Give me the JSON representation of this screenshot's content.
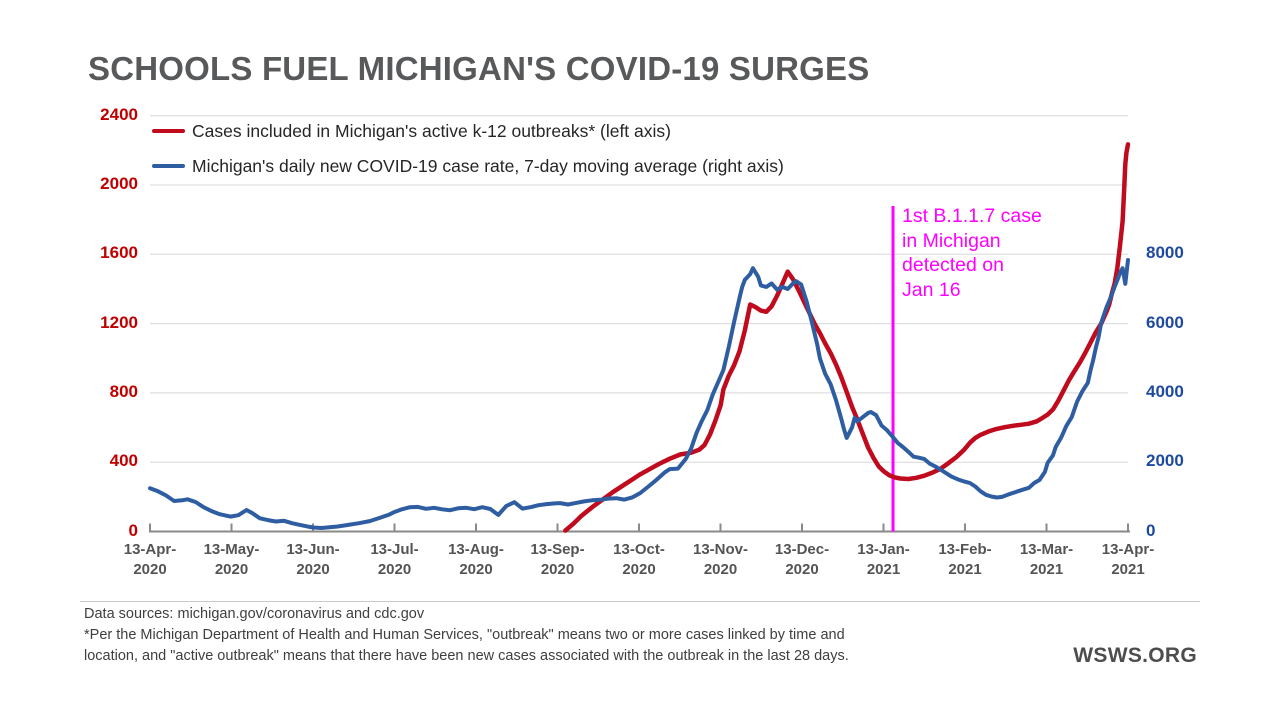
{
  "footer": {
    "lines": [
      "Data sources: michigan.gov/coronavirus and cdc.gov",
      "*Per the Michigan Department of Health and Human Services, \"outbreak\" means two or more cases linked by time and",
      "location, and \"active outbreak\" means that there have been new cases associated with the outbreak in the last 28 days."
    ]
  },
  "branding": {
    "text": "WSWS.ORG"
  },
  "chart_data": {
    "type": "line",
    "title": "SCHOOLS FUEL MICHIGAN'S COVID-19 SURGES",
    "x_unit": "days since 13-Apr-2020",
    "x_tick_labels": [
      [
        "13-Apr-",
        "2020"
      ],
      [
        "13-May-",
        "2020"
      ],
      [
        "13-Jun-",
        "2020"
      ],
      [
        "13-Jul-",
        "2020"
      ],
      [
        "13-Aug-",
        "2020"
      ],
      [
        "13-Sep-",
        "2020"
      ],
      [
        "13-Oct-",
        "2020"
      ],
      [
        "13-Nov-",
        "2020"
      ],
      [
        "13-Dec-",
        "2020"
      ],
      [
        "13-Jan-",
        "2021"
      ],
      [
        "13-Feb-",
        "2021"
      ],
      [
        "13-Mar-",
        "2021"
      ],
      [
        "13-Apr-",
        "2021"
      ]
    ],
    "grid": true,
    "gridline_color": "#d8d8d8",
    "axis_line_color": "#8a8a8a",
    "left_axis": {
      "side": "left",
      "color": "#c00000",
      "ticks": [
        0,
        400,
        800,
        1200,
        1600,
        2000,
        2400
      ],
      "range": [
        0,
        2400
      ]
    },
    "right_axis": {
      "side": "right",
      "color": "#1e4a9e",
      "ticks": [
        0,
        2000,
        4000,
        6000,
        8000
      ],
      "range": [
        0,
        12000
      ]
    },
    "event_line": {
      "day": 277.3,
      "color": "#ff00ff",
      "label_lines": [
        "1st B.1.1.7 case",
        "in Michigan",
        "detected on",
        "Jan 16"
      ]
    },
    "series": [
      {
        "name": "Cases included in Michigan's active k-12 outbreaks* (left axis)",
        "axis": "left",
        "color": "#c00b1e",
        "points": [
          [
            155,
            5
          ],
          [
            158,
            45
          ],
          [
            161,
            90
          ],
          [
            165,
            140
          ],
          [
            169,
            185
          ],
          [
            173,
            230
          ],
          [
            177,
            270
          ],
          [
            180,
            300
          ],
          [
            183,
            330
          ],
          [
            187,
            365
          ],
          [
            190,
            390
          ],
          [
            194,
            420
          ],
          [
            198,
            445
          ],
          [
            202,
            455
          ],
          [
            205,
            472
          ],
          [
            207,
            500
          ],
          [
            209,
            560
          ],
          [
            211,
            640
          ],
          [
            213,
            730
          ],
          [
            214,
            820
          ],
          [
            216,
            900
          ],
          [
            218,
            960
          ],
          [
            220,
            1040
          ],
          [
            222,
            1160
          ],
          [
            224,
            1310
          ],
          [
            226,
            1295
          ],
          [
            228,
            1275
          ],
          [
            230,
            1268
          ],
          [
            232,
            1300
          ],
          [
            234,
            1360
          ],
          [
            236,
            1430
          ],
          [
            238,
            1500
          ],
          [
            240,
            1455
          ],
          [
            242,
            1395
          ],
          [
            244,
            1330
          ],
          [
            246,
            1265
          ],
          [
            248,
            1200
          ],
          [
            250,
            1145
          ],
          [
            252,
            1085
          ],
          [
            254,
            1030
          ],
          [
            256,
            965
          ],
          [
            258,
            890
          ],
          [
            260,
            805
          ],
          [
            262,
            720
          ],
          [
            264,
            645
          ],
          [
            266,
            565
          ],
          [
            268,
            485
          ],
          [
            270,
            425
          ],
          [
            272,
            375
          ],
          [
            274,
            345
          ],
          [
            276,
            324
          ],
          [
            278,
            312
          ],
          [
            280,
            306
          ],
          [
            283,
            303
          ],
          [
            286,
            310
          ],
          [
            289,
            322
          ],
          [
            292,
            340
          ],
          [
            295,
            362
          ],
          [
            298,
            395
          ],
          [
            301,
            430
          ],
          [
            304,
            475
          ],
          [
            306,
            512
          ],
          [
            308,
            540
          ],
          [
            310,
            558
          ],
          [
            313,
            578
          ],
          [
            316,
            592
          ],
          [
            319,
            602
          ],
          [
            322,
            610
          ],
          [
            325,
            616
          ],
          [
            328,
            622
          ],
          [
            331,
            636
          ],
          [
            333,
            655
          ],
          [
            335,
            675
          ],
          [
            337,
            705
          ],
          [
            339,
            755
          ],
          [
            341,
            815
          ],
          [
            343,
            875
          ],
          [
            345,
            925
          ],
          [
            347,
            975
          ],
          [
            349,
            1030
          ],
          [
            351,
            1090
          ],
          [
            353,
            1150
          ],
          [
            355,
            1200
          ],
          [
            357,
            1270
          ],
          [
            358,
            1310
          ],
          [
            359,
            1375
          ],
          [
            360,
            1430
          ],
          [
            361,
            1520
          ],
          [
            362,
            1650
          ],
          [
            363,
            1790
          ],
          [
            363.6,
            1980
          ],
          [
            364,
            2120
          ],
          [
            364.4,
            2185
          ],
          [
            365,
            2235
          ]
        ]
      },
      {
        "name": "Michigan's daily new COVID-19 case rate, 7-day moving average (right axis)",
        "axis": "right",
        "color": "#2e5da2",
        "points": [
          [
            0,
            1250
          ],
          [
            3,
            1160
          ],
          [
            6,
            1040
          ],
          [
            9,
            880
          ],
          [
            12,
            900
          ],
          [
            14,
            930
          ],
          [
            17,
            850
          ],
          [
            20,
            700
          ],
          [
            23,
            590
          ],
          [
            26,
            500
          ],
          [
            30,
            430
          ],
          [
            33,
            470
          ],
          [
            36,
            620
          ],
          [
            38,
            540
          ],
          [
            41,
            380
          ],
          [
            44,
            330
          ],
          [
            47,
            290
          ],
          [
            50,
            310
          ],
          [
            53,
            240
          ],
          [
            56,
            190
          ],
          [
            59,
            140
          ],
          [
            61,
            115
          ],
          [
            64,
            100
          ],
          [
            67,
            125
          ],
          [
            70,
            145
          ],
          [
            74,
            190
          ],
          [
            78,
            240
          ],
          [
            82,
            300
          ],
          [
            86,
            400
          ],
          [
            89,
            480
          ],
          [
            91,
            555
          ],
          [
            94,
            640
          ],
          [
            97,
            700
          ],
          [
            100,
            710
          ],
          [
            103,
            655
          ],
          [
            106,
            685
          ],
          [
            109,
            640
          ],
          [
            112,
            615
          ],
          [
            115,
            670
          ],
          [
            118,
            685
          ],
          [
            121,
            645
          ],
          [
            124,
            700
          ],
          [
            127,
            650
          ],
          [
            130,
            480
          ],
          [
            133,
            740
          ],
          [
            136,
            845
          ],
          [
            139,
            660
          ],
          [
            142,
            700
          ],
          [
            145,
            760
          ],
          [
            148,
            790
          ],
          [
            151,
            810
          ],
          [
            153,
            820
          ],
          [
            156,
            780
          ],
          [
            159,
            825
          ],
          [
            162,
            870
          ],
          [
            165,
            900
          ],
          [
            168,
            915
          ],
          [
            171,
            950
          ],
          [
            174,
            960
          ],
          [
            177,
            920
          ],
          [
            180,
            985
          ],
          [
            183,
            1110
          ],
          [
            186,
            1300
          ],
          [
            189,
            1490
          ],
          [
            192,
            1700
          ],
          [
            194,
            1800
          ],
          [
            197,
            1815
          ],
          [
            200,
            2100
          ],
          [
            202,
            2400
          ],
          [
            204,
            2850
          ],
          [
            206,
            3200
          ],
          [
            208,
            3500
          ],
          [
            210,
            3950
          ],
          [
            212,
            4300
          ],
          [
            214,
            4660
          ],
          [
            216,
            5330
          ],
          [
            218,
            6050
          ],
          [
            220,
            6740
          ],
          [
            221,
            7060
          ],
          [
            222,
            7260
          ],
          [
            224,
            7430
          ],
          [
            225,
            7600
          ],
          [
            227,
            7350
          ],
          [
            228,
            7100
          ],
          [
            230,
            7060
          ],
          [
            232,
            7160
          ],
          [
            234,
            6980
          ],
          [
            236,
            7060
          ],
          [
            238,
            7000
          ],
          [
            240,
            7160
          ],
          [
            241,
            7230
          ],
          [
            243,
            7130
          ],
          [
            245,
            6650
          ],
          [
            247,
            6050
          ],
          [
            249,
            5400
          ],
          [
            250,
            5000
          ],
          [
            252,
            4550
          ],
          [
            254,
            4250
          ],
          [
            256,
            3800
          ],
          [
            258,
            3250
          ],
          [
            259,
            2950
          ],
          [
            260,
            2700
          ],
          [
            262,
            3000
          ],
          [
            263,
            3280
          ],
          [
            264,
            3180
          ],
          [
            266,
            3300
          ],
          [
            268,
            3420
          ],
          [
            269,
            3450
          ],
          [
            271,
            3360
          ],
          [
            273,
            3060
          ],
          [
            275,
            2930
          ],
          [
            277,
            2750
          ],
          [
            279,
            2560
          ],
          [
            281,
            2440
          ],
          [
            283,
            2300
          ],
          [
            285,
            2160
          ],
          [
            287,
            2130
          ],
          [
            289,
            2090
          ],
          [
            291,
            1960
          ],
          [
            293,
            1880
          ],
          [
            296,
            1740
          ],
          [
            299,
            1590
          ],
          [
            302,
            1490
          ],
          [
            304,
            1440
          ],
          [
            306,
            1400
          ],
          [
            308,
            1300
          ],
          [
            310,
            1160
          ],
          [
            312,
            1060
          ],
          [
            314,
            1010
          ],
          [
            316,
            980
          ],
          [
            318,
            1000
          ],
          [
            320,
            1060
          ],
          [
            322,
            1110
          ],
          [
            325,
            1190
          ],
          [
            328,
            1260
          ],
          [
            330,
            1400
          ],
          [
            332,
            1490
          ],
          [
            334,
            1720
          ],
          [
            335,
            1980
          ],
          [
            337,
            2200
          ],
          [
            338,
            2440
          ],
          [
            340,
            2700
          ],
          [
            342,
            3050
          ],
          [
            344,
            3300
          ],
          [
            346,
            3750
          ],
          [
            348,
            4050
          ],
          [
            350,
            4290
          ],
          [
            351,
            4650
          ],
          [
            352,
            4950
          ],
          [
            353,
            5300
          ],
          [
            354,
            5600
          ],
          [
            355,
            6020
          ],
          [
            356,
            6250
          ],
          [
            357,
            6480
          ],
          [
            358,
            6650
          ],
          [
            359,
            6850
          ],
          [
            360,
            7060
          ],
          [
            361,
            7250
          ],
          [
            362,
            7460
          ],
          [
            363,
            7600
          ],
          [
            364,
            7150
          ],
          [
            365,
            7835
          ]
        ]
      }
    ]
  }
}
